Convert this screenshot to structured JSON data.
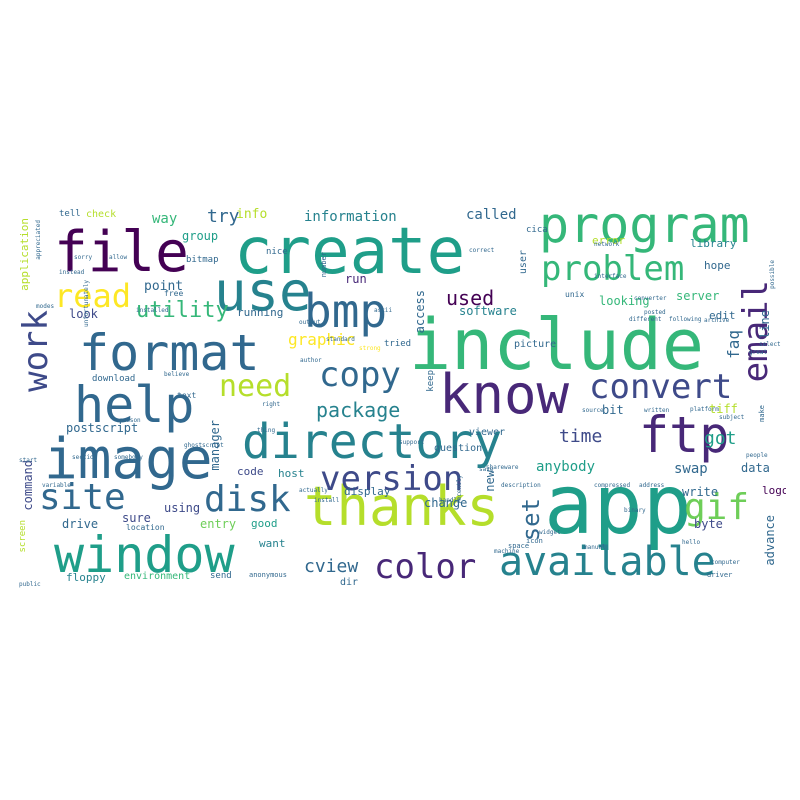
{
  "palette": {
    "purple": "#440154",
    "indigo": "#482878",
    "blue": "#3e4a89",
    "slate": "#31688e",
    "teal": "#26828e",
    "green": "#1f9e89",
    "mint": "#35b779",
    "lime": "#6ece58",
    "yellowgreen": "#b5de2b",
    "yellow": "#fde725"
  },
  "words": {
    "create": "create",
    "include": "include",
    "app": "app",
    "program": "program",
    "file": "file",
    "use": "use",
    "bmp": "bmp",
    "image": "image",
    "thanks": "thanks",
    "window": "window",
    "directory": "directory",
    "know": "know",
    "help": "help",
    "format": "format",
    "ftp": "ftp",
    "available": "available",
    "problem": "problem",
    "email": "email",
    "convert": "convert",
    "version": "version",
    "disk": "disk",
    "site": "site",
    "color": "color",
    "gif": "gif",
    "copy": "copy",
    "need": "need",
    "read": "read",
    "work": "work",
    "package": "package",
    "utility": "utility",
    "set": "set",
    "used": "used",
    "time": "time",
    "cview": "cview",
    "got": "got",
    "graphic": "graphic",
    "try": "try",
    "information": "information",
    "called": "called",
    "anybody": "anybody",
    "software": "software",
    "swap": "swap",
    "postscript": "postscript",
    "point": "point",
    "look": "look",
    "group": "group",
    "way": "way",
    "info": "info",
    "faq": "faq",
    "server": "server",
    "looking": "looking",
    "tiff": "tiff",
    "write": "write",
    "bit": "bit",
    "data": "data",
    "code": "code",
    "host": "host",
    "display": "display",
    "change": "change",
    "new": "new",
    "command": "command",
    "drive": "drive",
    "sure": "sure",
    "using": "using",
    "entry": "entry",
    "good": "good",
    "want": "want",
    "byte": "byte",
    "advance": "advance",
    "logo": "logo",
    "line": "line",
    "edit": "edit",
    "hope": "hope",
    "library": "library",
    "run": "run",
    "running": "running",
    "access": "access",
    "error": "error",
    "manager": "manager",
    "floppy": "floppy",
    "environment": "environment",
    "send": "send",
    "dir": "dir",
    "tell": "tell",
    "check": "check",
    "application": "application",
    "nice": "nice",
    "bitmap": "bitmap",
    "free": "free",
    "question": "question",
    "viewer": "viewer",
    "picture": "picture",
    "tried": "tried",
    "keep": "keep",
    "user": "user",
    "unix": "unix",
    "cica": "cica",
    "screen": "screen",
    "download": "download",
    "text": "text",
    "location": "location",
    "anonymous": "anonymous",
    "number": "number",
    "author": "author",
    "ascii": "ascii",
    "shareware": "shareware",
    "interface": "interface",
    "network": "network",
    "converter": "converter",
    "posted": "posted",
    "platform": "platform",
    "subject": "subject",
    "computer": "computer",
    "driver": "driver",
    "binary": "binary",
    "manual": "manual",
    "machine": "machine",
    "source": "source",
    "written": "written",
    "people": "people",
    "different": "different",
    "following": "following",
    "archive": "archive",
    "possible": "possible",
    "appreciated": "appreciated",
    "unfortunately": "unfortunately",
    "installed": "installed",
    "modes": "modes",
    "ghostscript": "ghostscript",
    "support": "support",
    "compressed": "compressed",
    "description": "description",
    "address": "address",
    "hello": "hello",
    "widget": "widget",
    "icon": "icon",
    "space": "space",
    "function": "function",
    "install": "install",
    "actually": "actually",
    "variable": "variable",
    "public": "public",
    "start": "start",
    "section": "section",
    "somebody": "somebody",
    "handle": "handle",
    "save": "save",
    "recently": "recently",
    "standard": "standard",
    "strong": "strong",
    "right": "right",
    "doesnt": "doesnt",
    "allow": "allow",
    "sorry": "sorry",
    "instead": "instead",
    "believe": "believe",
    "thing": "thing",
    "output": "output",
    "reason": "reason",
    "correct": "correct",
    "utility2": "utility",
    "make": "make",
    "great": "great",
    "select": "select"
  }
}
